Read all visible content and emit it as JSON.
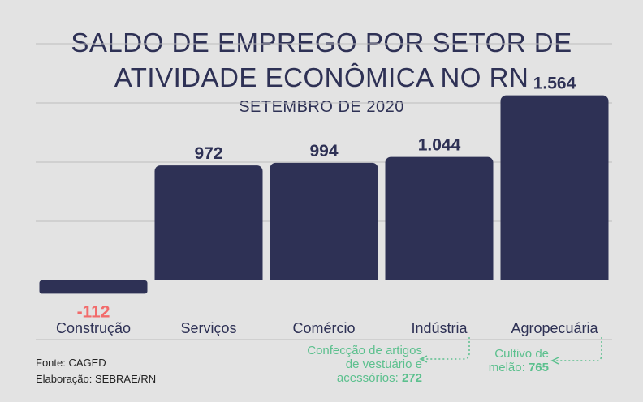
{
  "chart_data": {
    "type": "bar",
    "title_line1": "SALDO DE EMPREGO POR SETOR DE",
    "title_line2": "ATIVIDADE ECONÔMICA NO RN",
    "subtitle": "SETEMBRO DE 2020",
    "categories": [
      "Construção",
      "Serviços",
      "Comércio",
      "Indústria",
      "Agropecuária"
    ],
    "values": [
      -112,
      972,
      994,
      1044,
      1564
    ],
    "value_labels": [
      "-112",
      "972",
      "994",
      "1.044",
      "1.564"
    ],
    "ylim": [
      -500,
      2000
    ],
    "grid": true,
    "colors": {
      "bar": "#2e3155",
      "negative_label": "#f26b6b",
      "positive_label": "#2e3155",
      "annotation": "#5cc08e",
      "grid": "#bdbdbd"
    }
  },
  "annotations": {
    "industria": {
      "line1": "Confecção de artigos",
      "line2": "de vestuário e",
      "line3": "acessórios: ",
      "value": "272"
    },
    "agropecuaria": {
      "line1": "Cultivo de",
      "line2": "melão: ",
      "value": "765"
    }
  },
  "footer": {
    "source": "Fonte: CAGED",
    "elaboration": "Elaboração: SEBRAE/RN"
  }
}
